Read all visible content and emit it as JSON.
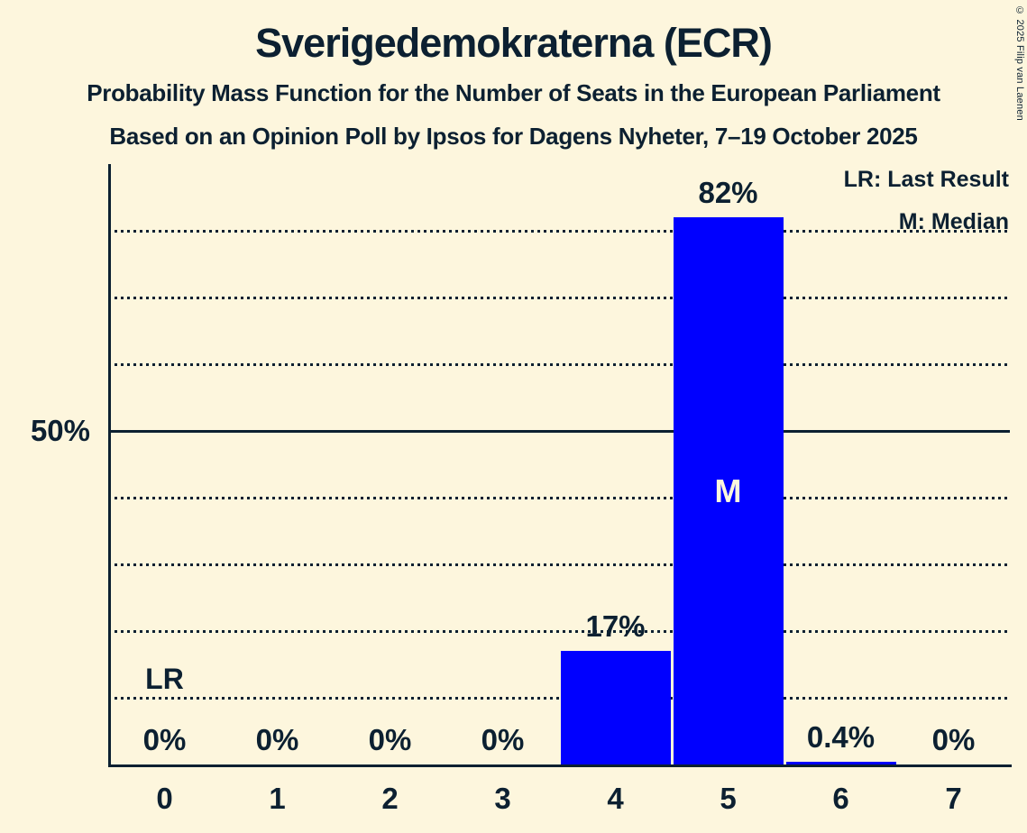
{
  "header": {
    "title": "Sverigedemokraterna (ECR)",
    "subtitle1": "Probability Mass Function for the Number of Seats in the European Parliament",
    "subtitle2": "Based on an Opinion Poll by Ipsos for Dagens Nyheter, 7–19 October 2025"
  },
  "legend": {
    "lr_label": "LR: Last Result",
    "m_label": "M: Median"
  },
  "copyright": "© 2025 Filip van Laenen",
  "y_axis": {
    "label": "50%",
    "label_pct": 50
  },
  "colors": {
    "background": "#FDF6DD",
    "bar": "#0000FF",
    "ink": "#0C2031"
  },
  "chart_data": {
    "type": "bar",
    "title": "Sverigedemokraterna (ECR)",
    "xlabel": "Number of Seats in the European Parliament",
    "ylabel": "Probability",
    "categories": [
      "0",
      "1",
      "2",
      "3",
      "4",
      "5",
      "6",
      "7"
    ],
    "values": [
      0,
      0,
      0,
      0,
      17,
      82,
      0.4,
      0
    ],
    "value_labels": [
      "0%",
      "0%",
      "0%",
      "0%",
      "17%",
      "82%",
      "0.4%",
      "0%"
    ],
    "ylim": [
      0,
      90
    ],
    "gridlines_pct": [
      10,
      20,
      30,
      40,
      50,
      60,
      70,
      80
    ],
    "solid_gridline_pct": 50,
    "grid": "dotted-horizontal",
    "legend_position": "top-right",
    "annotations": {
      "lr_marker": "LR",
      "last_result_seat_index": 0,
      "lr_line_pct": 10,
      "median_marker": "M",
      "median_seat_index": 5
    }
  }
}
